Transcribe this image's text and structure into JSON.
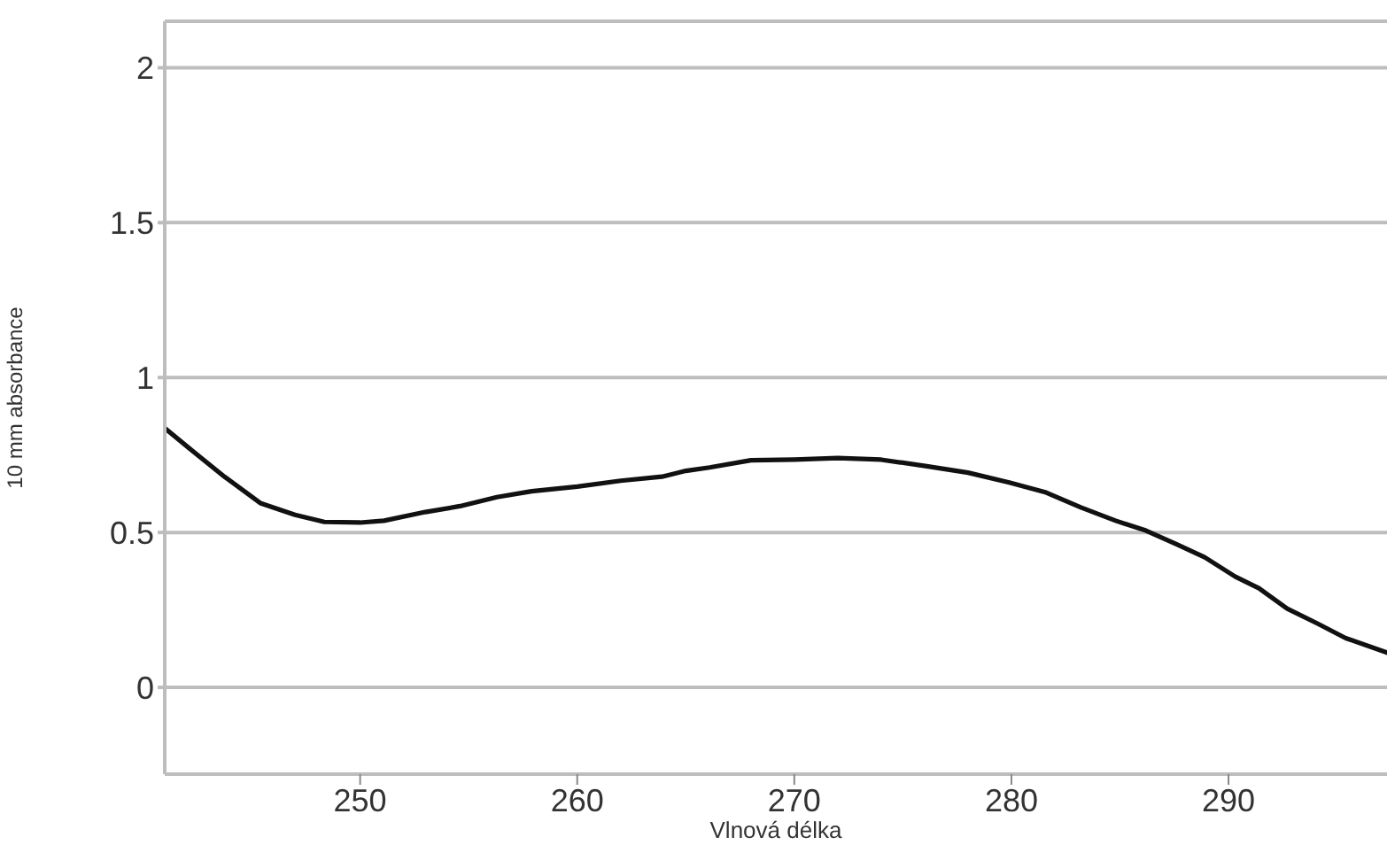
{
  "chart_data": {
    "type": "line",
    "xlabel": "Vlnová délka",
    "ylabel": "10 mm absorbance",
    "xlim": [
      241,
      297.3
    ],
    "xticks": [
      250,
      260,
      270,
      280,
      290
    ],
    "ylim": [
      -0.28,
      2.15
    ],
    "yticks": [
      0,
      0.5,
      1,
      1.5,
      2
    ],
    "grid": "y",
    "marker": "none",
    "line_style": "solid",
    "series": [
      {
        "color": "#111111",
        "x": [
          241,
          242.4,
          243.75,
          245.4,
          247,
          248.35,
          250,
          251.1,
          253,
          254.6,
          256.3,
          257.9,
          260,
          262,
          263.9,
          265,
          266.1,
          268,
          270,
          272,
          274,
          276.1,
          278,
          279.9,
          281.6,
          283.2,
          284.8,
          286.2,
          287.6,
          288.9,
          290.3,
          291.4,
          292.7,
          294.1,
          295.4,
          297.3
        ],
        "values": [
          0.837,
          0.756,
          0.68,
          0.595,
          0.557,
          0.534,
          0.532,
          0.538,
          0.566,
          0.585,
          0.614,
          0.633,
          0.648,
          0.667,
          0.68,
          0.699,
          0.71,
          0.733,
          0.735,
          0.74,
          0.735,
          0.714,
          0.693,
          0.661,
          0.629,
          0.581,
          0.538,
          0.506,
          0.462,
          0.42,
          0.358,
          0.32,
          0.254,
          0.206,
          0.159,
          0.112
        ]
      }
    ]
  }
}
